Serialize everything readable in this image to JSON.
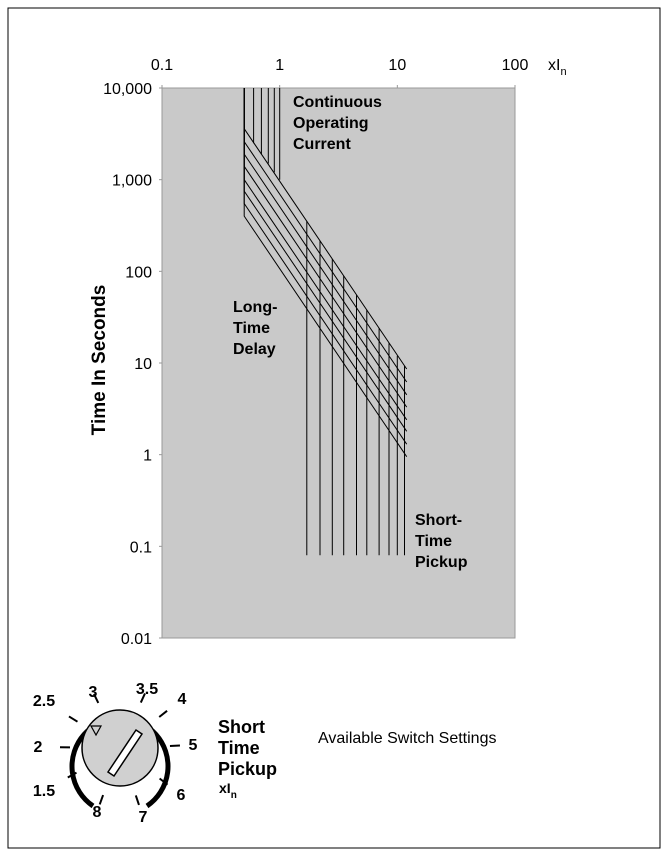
{
  "chart_data": {
    "type": "line",
    "y_label": "Time In Seconds",
    "x_unit": {
      "main": "xI",
      "sub": "n"
    },
    "xscale": "log",
    "yscale": "log",
    "xlim": [
      0.1,
      100
    ],
    "ylim": [
      0.01,
      10000
    ],
    "xticks": [
      0.1,
      1,
      10,
      100
    ],
    "yticks": [
      {
        "value": 10000,
        "label": "10,000"
      },
      {
        "value": 1000,
        "label": "1,000"
      },
      100,
      10,
      1,
      0.1,
      0.01
    ],
    "background": "#c9c9c9",
    "annotations": [
      {
        "lines": [
          "Continuous",
          "Operating",
          "Current"
        ]
      },
      {
        "lines": [
          "Long-",
          "Time",
          "Delay"
        ]
      },
      {
        "lines": [
          "Short-",
          "Time",
          "Pickup"
        ]
      }
    ],
    "series": [
      {
        "color": "#000000",
        "x": [
          0.5,
          0.5,
          12
        ],
        "values": [
          10000,
          400,
          0.95
        ]
      },
      {
        "color": "#000000",
        "x": [
          0.5,
          0.5,
          12
        ],
        "values": [
          10000,
          550,
          1.3
        ]
      },
      {
        "color": "#000000",
        "x": [
          0.5,
          0.5,
          12
        ],
        "values": [
          10000,
          750,
          1.8
        ]
      },
      {
        "color": "#000000",
        "x": [
          0.5,
          0.5,
          12
        ],
        "values": [
          10000,
          1000,
          2.4
        ]
      },
      {
        "color": "#000000",
        "x": [
          0.5,
          0.5,
          12
        ],
        "values": [
          10000,
          1400,
          3.3
        ]
      },
      {
        "color": "#000000",
        "x": [
          0.5,
          0.5,
          12
        ],
        "values": [
          10000,
          1900,
          4.5
        ]
      },
      {
        "color": "#000000",
        "x": [
          0.5,
          0.5,
          12
        ],
        "values": [
          10000,
          2600,
          6.2
        ]
      },
      {
        "color": "#000000",
        "x": [
          0.5,
          0.5,
          12
        ],
        "values": [
          10000,
          3600,
          8.6
        ]
      },
      {
        "color": "#000000",
        "x": [
          0.6,
          0.6
        ],
        "values": [
          10000,
          2500
        ]
      },
      {
        "color": "#000000",
        "x": [
          0.7,
          0.7
        ],
        "values": [
          10000,
          1900
        ]
      },
      {
        "color": "#000000",
        "x": [
          0.8,
          0.8
        ],
        "values": [
          10000,
          1500
        ]
      },
      {
        "color": "#000000",
        "x": [
          0.9,
          0.9
        ],
        "values": [
          10000,
          1200
        ]
      },
      {
        "color": "#000000",
        "x": [
          1,
          1
        ],
        "values": [
          10000,
          1000
        ]
      },
      {
        "color": "#000000",
        "x": [
          1.7,
          1.7
        ],
        "values": [
          0.08,
          353
        ]
      },
      {
        "color": "#000000",
        "x": [
          2.2,
          2.2
        ],
        "values": [
          0.08,
          215
        ]
      },
      {
        "color": "#000000",
        "x": [
          2.8,
          2.8
        ],
        "values": [
          0.08,
          136
        ]
      },
      {
        "color": "#000000",
        "x": [
          3.5,
          3.5
        ],
        "values": [
          0.08,
          89
        ]
      },
      {
        "color": "#000000",
        "x": [
          4.5,
          4.5
        ],
        "values": [
          0.08,
          55
        ]
      },
      {
        "color": "#000000",
        "x": [
          5.5,
          5.5
        ],
        "values": [
          0.08,
          38
        ]
      },
      {
        "color": "#000000",
        "x": [
          7,
          7
        ],
        "values": [
          0.08,
          24
        ]
      },
      {
        "color": "#000000",
        "x": [
          8.5,
          8.5
        ],
        "values": [
          0.08,
          16.5
        ]
      },
      {
        "color": "#000000",
        "x": [
          10,
          10
        ],
        "values": [
          0.08,
          12
        ]
      },
      {
        "color": "#000000",
        "x": [
          11.5,
          11.5
        ],
        "values": [
          0.08,
          9.3
        ]
      }
    ]
  },
  "dial": {
    "settings": [
      1.5,
      2,
      2.5,
      3,
      3.5,
      4,
      5,
      6,
      7,
      8
    ],
    "label": [
      "Short",
      "Time",
      "Pickup"
    ],
    "unit": {
      "main": "xI",
      "sub": "n"
    }
  },
  "caption": "Available Switch Settings"
}
